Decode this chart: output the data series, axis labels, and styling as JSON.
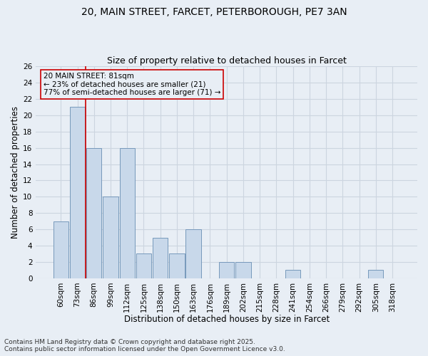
{
  "title_line1": "20, MAIN STREET, FARCET, PETERBOROUGH, PE7 3AN",
  "title_line2": "Size of property relative to detached houses in Farcet",
  "categories": [
    "60sqm",
    "73sqm",
    "86sqm",
    "99sqm",
    "112sqm",
    "125sqm",
    "138sqm",
    "150sqm",
    "163sqm",
    "176sqm",
    "189sqm",
    "202sqm",
    "215sqm",
    "228sqm",
    "241sqm",
    "254sqm",
    "266sqm",
    "279sqm",
    "292sqm",
    "305sqm",
    "318sqm"
  ],
  "values": [
    7,
    21,
    16,
    10,
    16,
    3,
    5,
    3,
    6,
    0,
    2,
    2,
    0,
    0,
    1,
    0,
    0,
    0,
    0,
    1,
    0
  ],
  "bar_color": "#c8d8ea",
  "bar_edge_color": "#7799bb",
  "bar_linewidth": 0.7,
  "subject_line_color": "#cc0000",
  "xlabel": "Distribution of detached houses by size in Farcet",
  "ylabel": "Number of detached properties",
  "ylim": [
    0,
    26
  ],
  "yticks": [
    0,
    2,
    4,
    6,
    8,
    10,
    12,
    14,
    16,
    18,
    20,
    22,
    24,
    26
  ],
  "grid_color": "#ccd5e0",
  "background_color": "#e8eef5",
  "annotation_line1": "20 MAIN STREET: 81sqm",
  "annotation_line2": "← 23% of detached houses are smaller (21)",
  "annotation_line3": "77% of semi-detached houses are larger (71) →",
  "annotation_box_edge_color": "#cc0000",
  "footer_line1": "Contains HM Land Registry data © Crown copyright and database right 2025.",
  "footer_line2": "Contains public sector information licensed under the Open Government Licence v3.0.",
  "title_fontsize": 10,
  "subtitle_fontsize": 9,
  "axis_label_fontsize": 8.5,
  "tick_fontsize": 7.5,
  "annotation_fontsize": 7.5,
  "footer_fontsize": 6.5
}
